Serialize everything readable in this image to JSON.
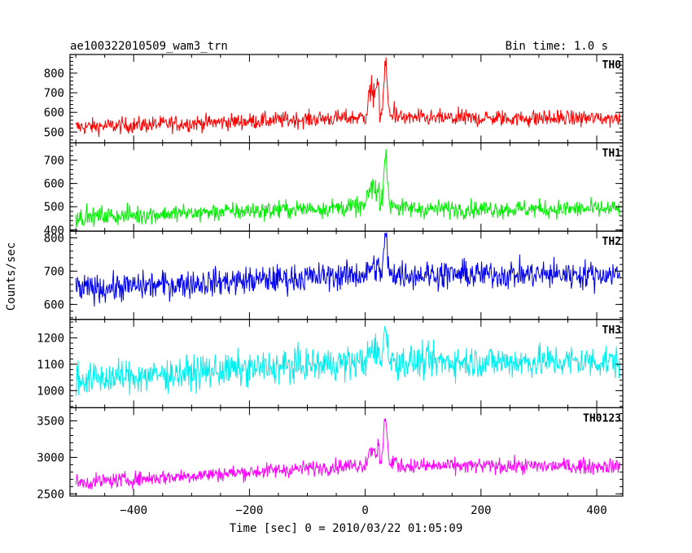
{
  "chart_data": {
    "type": "line",
    "title": "ae100322010509_wam3_trn",
    "title_right": "Bin time: 1.0 s",
    "xlabel": "Time [sec] 0 = 2010/03/22 01:05:09",
    "ylabel": "Counts/sec",
    "xlim": [
      -510,
      445
    ],
    "x_ticks": [
      -400,
      -200,
      0,
      200,
      400
    ],
    "x_tick_labels": [
      "−400",
      "−200",
      "0",
      "200",
      "400"
    ],
    "x_range": [
      -500,
      440
    ],
    "peak_time": 35,
    "grid": false,
    "panels": [
      {
        "name": "TH0",
        "color": "#ff0000",
        "ylim": [
          445,
          895
        ],
        "yticks": [
          500,
          600,
          700,
          800
        ],
        "ytick_labels": [
          "500",
          "600",
          "700",
          "800"
        ],
        "baseline_start": 525,
        "baseline_end": 575,
        "baseline_after": 570,
        "noise": 30,
        "peak": 880,
        "precursor": 760
      },
      {
        "name": "TH1",
        "color": "#00ee00",
        "ylim": [
          395,
          775
        ],
        "yticks": [
          400,
          500,
          600,
          700
        ],
        "ytick_labels": [
          "400",
          "500",
          "600",
          "700"
        ],
        "baseline_start": 455,
        "baseline_end": 500,
        "baseline_after": 490,
        "noise": 28,
        "peak": 770,
        "precursor": 620
      },
      {
        "name": "TH2",
        "color": "#0000ee",
        "ylim": [
          555,
          820
        ],
        "yticks": [
          600,
          700,
          800
        ],
        "ytick_labels": [
          "600",
          "700",
          "800"
        ],
        "baseline_start": 645,
        "baseline_end": 690,
        "baseline_after": 690,
        "noise": 30,
        "peak": 815,
        "precursor": 720
      },
      {
        "name": "TH3",
        "color": "#00eeee",
        "ylim": [
          935,
          1270
        ],
        "yticks": [
          1000,
          1100,
          1200
        ],
        "ytick_labels": [
          "1000",
          "1100",
          "1200"
        ],
        "baseline_start": 1040,
        "baseline_end": 1110,
        "baseline_after": 1110,
        "noise": 45,
        "peak": 1265,
        "precursor": 1160
      },
      {
        "name": "TH0123",
        "color": "#ff00ff",
        "ylim": [
          2470,
          3680
        ],
        "yticks": [
          2500,
          3000,
          3500
        ],
        "ytick_labels": [
          "2500",
          "3000",
          "3500"
        ],
        "baseline_start": 2650,
        "baseline_end": 2900,
        "baseline_after": 2880,
        "noise": 75,
        "peak": 3660,
        "precursor": 3200
      }
    ]
  }
}
